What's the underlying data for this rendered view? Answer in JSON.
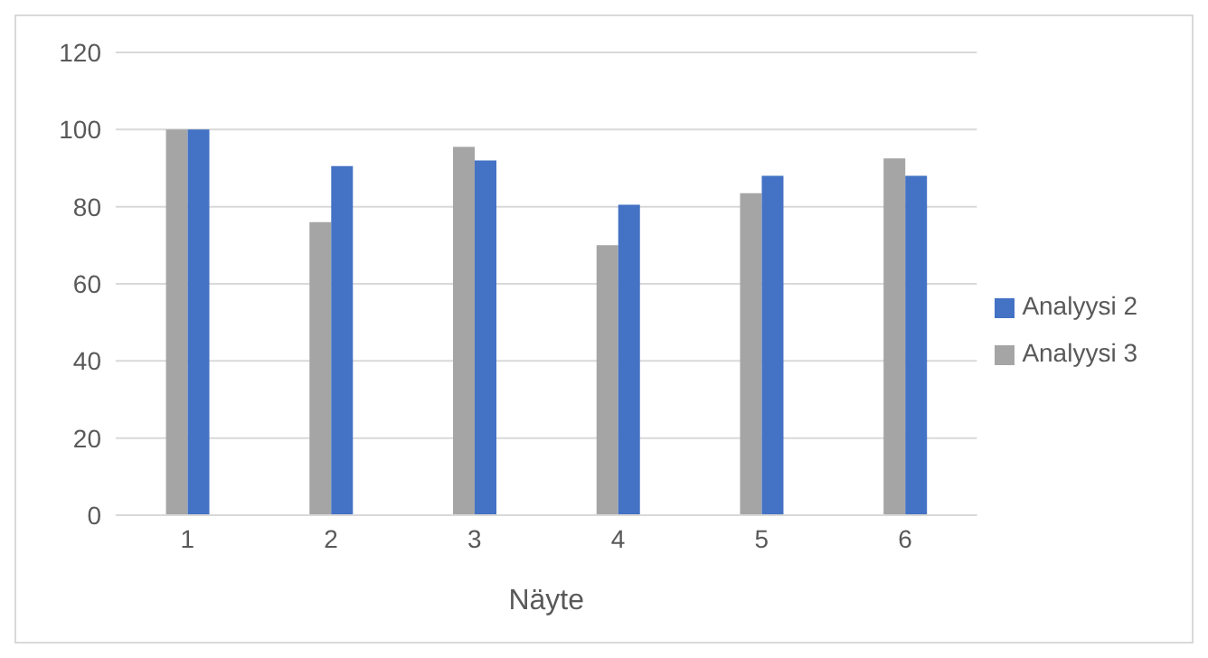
{
  "chart_data": {
    "type": "bar",
    "xlabel": "Näyte",
    "categories": [
      "1",
      "2",
      "3",
      "4",
      "5",
      "6"
    ],
    "series": [
      {
        "name": "Analyysi 3",
        "color": "#a5a5a5",
        "values": [
          100,
          76,
          95.5,
          70,
          83.5,
          92.5
        ]
      },
      {
        "name": "Analyysi 2",
        "color": "#4472c4",
        "values": [
          100,
          90.5,
          92,
          80.5,
          88,
          88
        ]
      }
    ],
    "ylim": [
      0,
      120
    ],
    "yticks": [
      0,
      20,
      40,
      60,
      80,
      100,
      120
    ],
    "grid": "y",
    "legend": "right"
  }
}
